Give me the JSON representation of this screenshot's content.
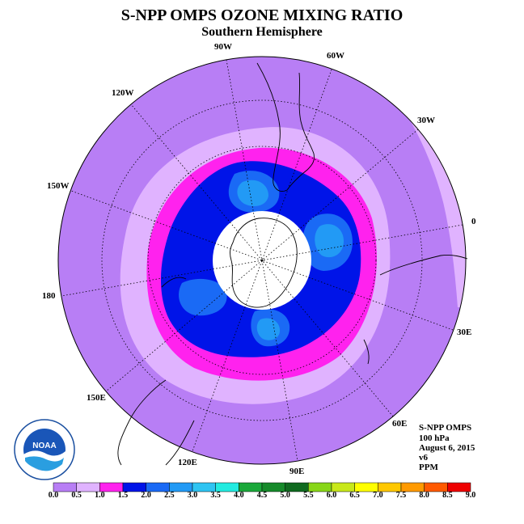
{
  "title": "S-NPP OMPS OZONE MIXING RATIO",
  "subtitle": "Southern Hemisphere",
  "longitude_labels": {
    "w90": "90W",
    "w60": "60W",
    "w30": "30W",
    "e0": "0",
    "e30": "30E",
    "e60": "60E",
    "e90": "90E",
    "e120": "120E",
    "e150": "150E",
    "e180": "180",
    "w150": "150W",
    "w120": "120W"
  },
  "info": {
    "instrument": "S-NPP OMPS",
    "pressure": "100 hPa",
    "date": "August 6, 2015",
    "version": "v6",
    "units": "PPM"
  },
  "logo_text": "NOAA",
  "colorbar": {
    "ticks": [
      "0.0",
      "0.5",
      "1.0",
      "1.5",
      "2.0",
      "2.5",
      "3.0",
      "3.5",
      "4.0",
      "4.5",
      "5.0",
      "5.5",
      "6.0",
      "6.5",
      "7.0",
      "7.5",
      "8.0",
      "8.5",
      "9.0"
    ],
    "colors": [
      "#b87ef5",
      "#e0b3ff",
      "#ff22ee",
      "#0014e8",
      "#1a6af5",
      "#229af5",
      "#2ec4f2",
      "#22ebe0",
      "#1aa83a",
      "#168a2a",
      "#0f6a1f",
      "#88d618",
      "#c8e81a",
      "#ffff00",
      "#ffc800",
      "#ff9a00",
      "#ff5a00",
      "#ee0000",
      "#8a5a3a"
    ]
  },
  "legend_colors": {
    "background": "#b87ef5",
    "ring_light": "#e0b3ff",
    "ring_magenta": "#ff22ee",
    "core_blue": "#0014e8",
    "patch_light_blue": "#229af5",
    "patch_cyan": "#2ec4f2",
    "pole_hole": "#ffffff"
  }
}
